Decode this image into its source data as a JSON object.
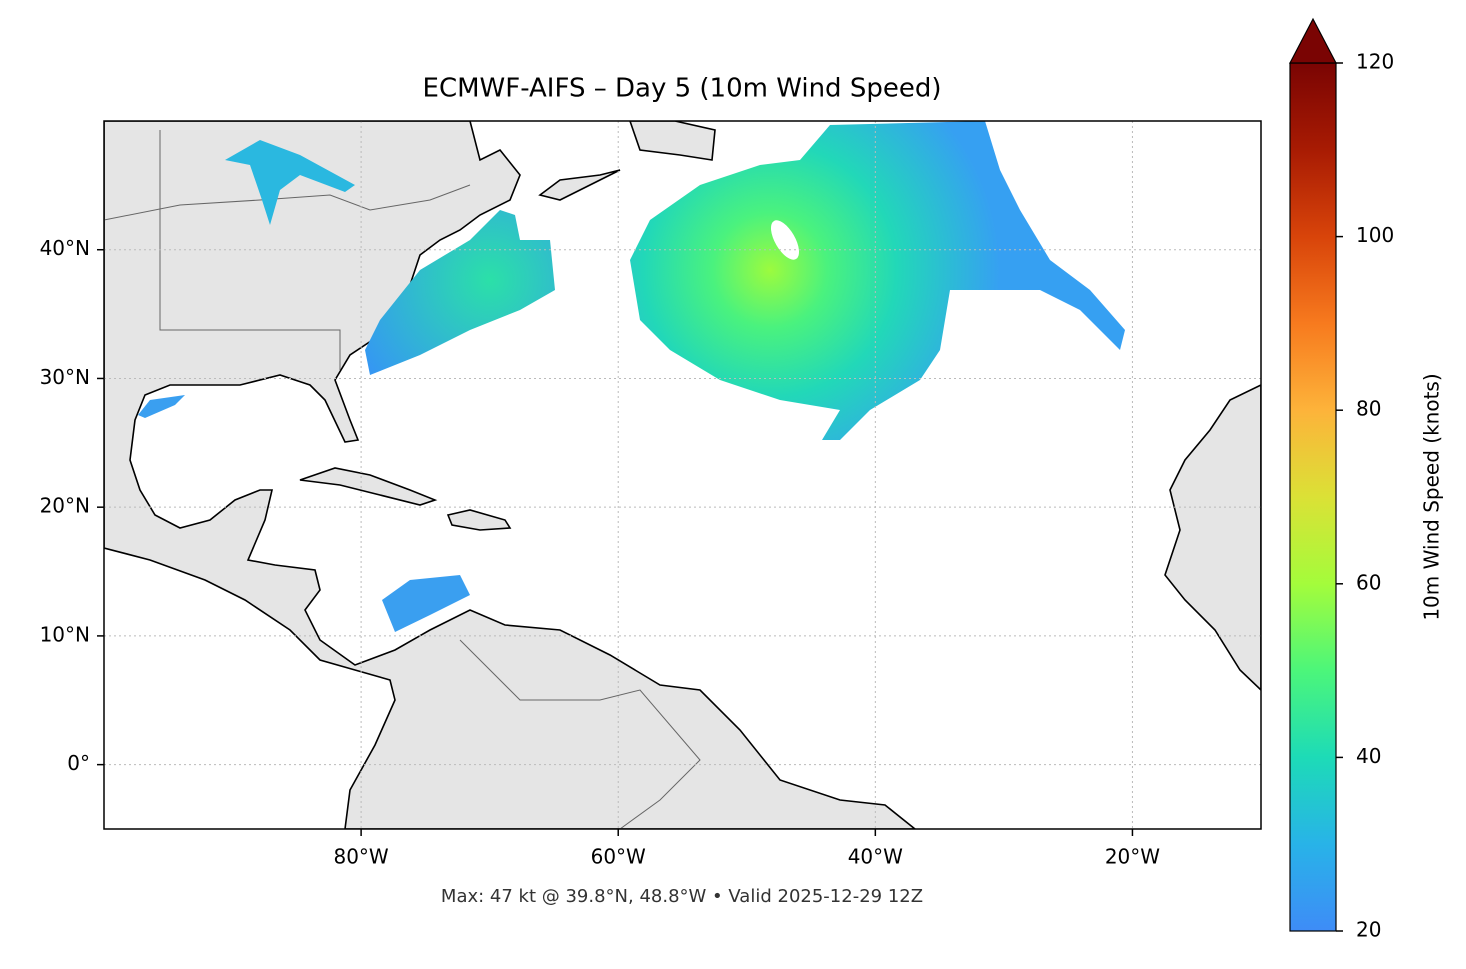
{
  "chart_data": {
    "type": "map",
    "title": "ECMWF-AIFS – Day 5 (10m Wind Speed)",
    "note": "Max: 47 kt @ 39.8°N, 48.8°W • Valid 2025-12-29 12Z",
    "xlim": [
      -100,
      -10
    ],
    "ylim": [
      -5,
      50
    ],
    "xticks": [
      {
        "value": -80,
        "label": "80°W"
      },
      {
        "value": -60,
        "label": "60°W"
      },
      {
        "value": -40,
        "label": "40°W"
      },
      {
        "value": -20,
        "label": "20°W"
      }
    ],
    "yticks": [
      {
        "value": 0,
        "label": "0°"
      },
      {
        "value": 10,
        "label": "10°N"
      },
      {
        "value": 20,
        "label": "20°N"
      },
      {
        "value": 30,
        "label": "30°N"
      },
      {
        "value": 40,
        "label": "40°N"
      }
    ],
    "grid": true,
    "colorbar": {
      "label": "10m Wind Speed (knots)",
      "clim": [
        20,
        120
      ],
      "ticks": [
        20,
        40,
        60,
        80,
        100,
        120
      ],
      "extend": "max"
    }
  }
}
